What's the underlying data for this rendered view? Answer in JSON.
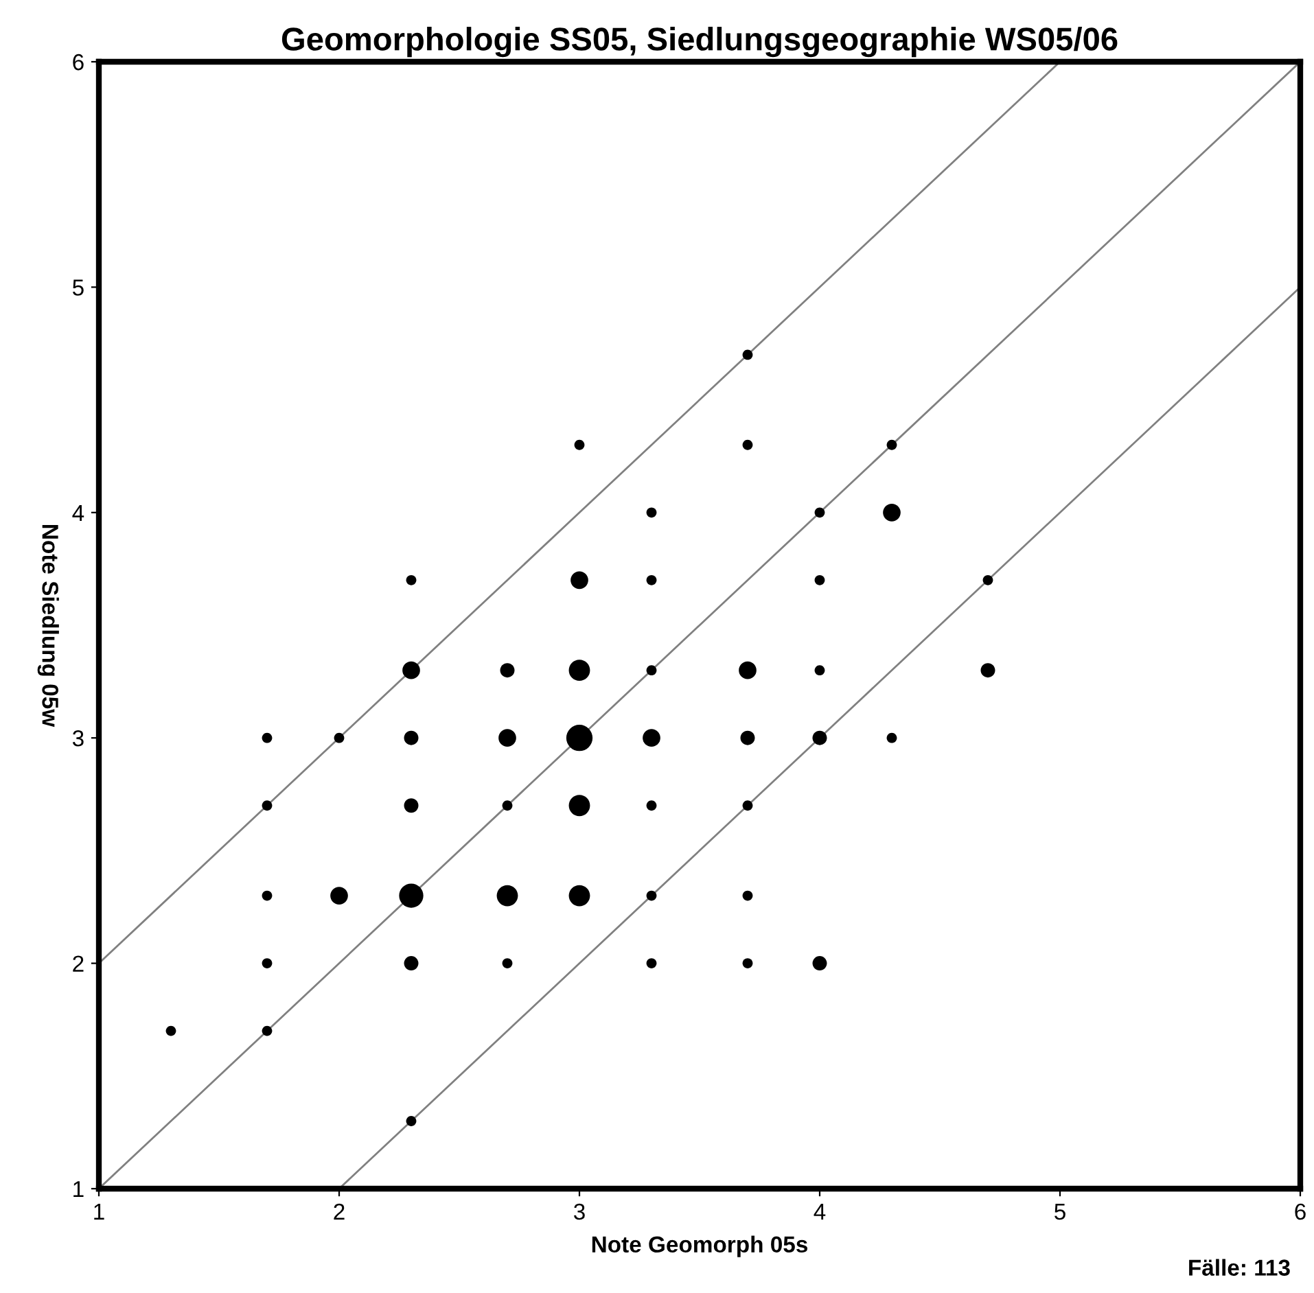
{
  "chart_data": {
    "type": "bubble",
    "title": "Geomorphologie SS05, Siedlungsgeographie WS05/06",
    "xlabel": "Note Geomorph 05s",
    "ylabel": "Note Siedlung 05w",
    "annotations": [
      "Fälle: 113"
    ],
    "xlim": [
      1,
      6
    ],
    "ylim": [
      1,
      6
    ],
    "xticks": [
      1,
      2,
      3,
      4,
      5,
      6
    ],
    "yticks": [
      1,
      2,
      3,
      4,
      5,
      6
    ],
    "grid": false,
    "legend": false,
    "series": [
      {
        "marker": "circle",
        "color": "#000000",
        "x": [
          3.7,
          3.0,
          3.7,
          4.3,
          3.3,
          4.0,
          4.3,
          2.3,
          3.0,
          3.3,
          4.0,
          4.7,
          2.3,
          2.7,
          3.0,
          3.3,
          3.7,
          4.0,
          4.7,
          1.7,
          2.0,
          2.3,
          2.7,
          3.0,
          3.3,
          3.7,
          4.0,
          4.3,
          1.7,
          2.3,
          2.7,
          3.0,
          3.3,
          3.7,
          1.7,
          2.0,
          2.3,
          2.7,
          3.0,
          3.3,
          3.7,
          1.7,
          2.3,
          2.7,
          3.3,
          3.7,
          4.0,
          1.3,
          1.7,
          2.3
        ],
        "values": [
          4.7,
          4.3,
          4.3,
          4.3,
          4.0,
          4.0,
          4.0,
          3.7,
          3.7,
          3.7,
          3.7,
          3.7,
          3.3,
          3.3,
          3.3,
          3.3,
          3.3,
          3.3,
          3.3,
          3.0,
          3.0,
          3.0,
          3.0,
          3.0,
          3.0,
          3.0,
          3.0,
          3.0,
          2.7,
          2.7,
          2.7,
          2.7,
          2.7,
          2.7,
          2.3,
          2.3,
          2.3,
          2.3,
          2.3,
          2.3,
          2.3,
          2.0,
          2.0,
          2.0,
          2.0,
          2.0,
          2.0,
          1.7,
          1.7,
          1.3
        ],
        "sizes": [
          0.15,
          0.15,
          0.15,
          0.15,
          0.15,
          0.15,
          0.45,
          0.15,
          0.45,
          0.15,
          0.15,
          0.15,
          0.45,
          0.3,
          0.65,
          0.15,
          0.45,
          0.15,
          0.3,
          0.15,
          0.15,
          0.3,
          0.45,
          1,
          0.45,
          0.3,
          0.3,
          0.15,
          0.15,
          0.3,
          0.15,
          0.65,
          0.15,
          0.15,
          0.15,
          0.45,
          0.85,
          0.65,
          0.65,
          0.15,
          0.15,
          0.15,
          0.3,
          0.15,
          0.15,
          0.15,
          0.3,
          0.15,
          0.15,
          0.15
        ]
      },
      {
        "type": "line",
        "color": "#808080",
        "line_style": "solid",
        "x": [
          1,
          5
        ],
        "values": [
          2,
          6
        ]
      },
      {
        "type": "line",
        "color": "#808080",
        "line_style": "solid",
        "x": [
          1,
          6
        ],
        "values": [
          1,
          6
        ]
      },
      {
        "type": "line",
        "color": "#808080",
        "line_style": "solid",
        "x": [
          2,
          6
        ],
        "values": [
          1,
          5
        ]
      }
    ]
  }
}
